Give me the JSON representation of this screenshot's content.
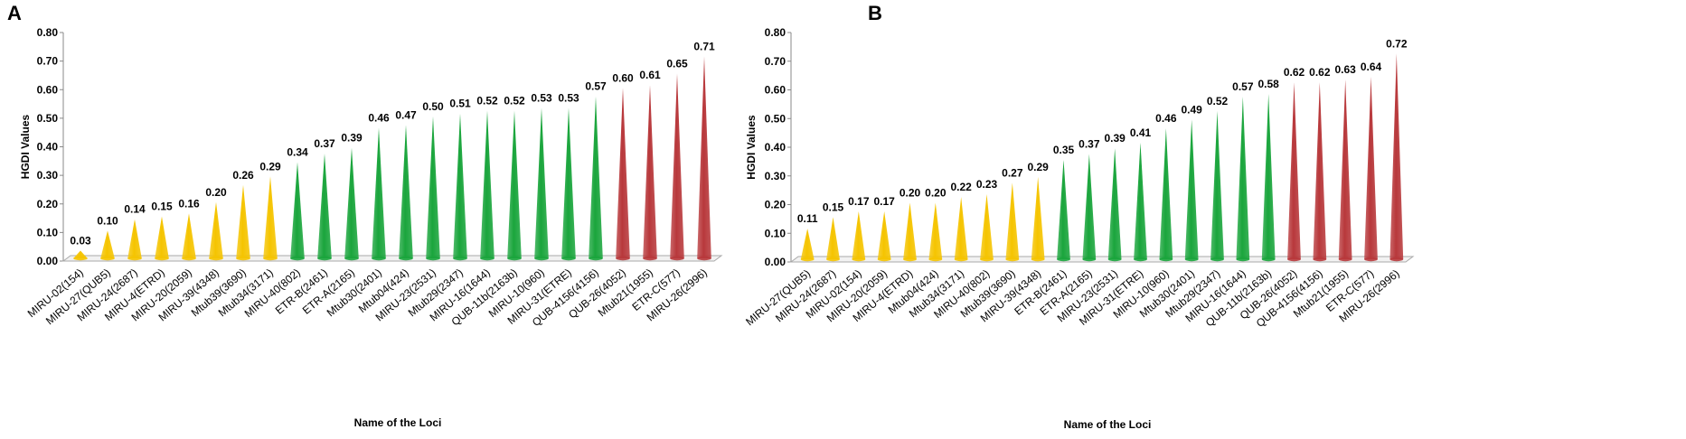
{
  "figure": {
    "panels": [
      "A",
      "B"
    ]
  },
  "colors": {
    "yellow": "#f5c400",
    "green": "#1aa53c",
    "red": "#b8383b"
  },
  "chart_data": [
    {
      "panel": "A",
      "type": "bar",
      "title": "",
      "xlabel": "Name of the Loci",
      "ylabel": "HGDI Values",
      "ylim": [
        0,
        0.8
      ],
      "yticks": [
        "0.00",
        "0.10",
        "0.20",
        "0.30",
        "0.40",
        "0.50",
        "0.60",
        "0.70",
        "0.80"
      ],
      "categories": [
        "MIRU-02(154)",
        "MIRU-27(QUB5)",
        "MIRU-24(2687)",
        "MIRU-4(ETRD)",
        "MIRU-20(2059)",
        "MIRU-39(4348)",
        "Mtub39(3690)",
        "Mtub34(3171)",
        "MIRU-40(802)",
        "ETR-B(2461)",
        "ETR-A(2165)",
        "Mtub30(2401)",
        "Mtub04(424)",
        "MIRU-23(2531)",
        "Mtub29(2347)",
        "MIRU-16(1644)",
        "QUB-11b(2163b)",
        "MIRU-10(960)",
        "MIRU-31(ETRE)",
        "QUB-4156(4156)",
        "QUB-26(4052)",
        "Mtub21(1955)",
        "ETR-C(577)",
        "MIRU-26(2996)"
      ],
      "values": [
        0.03,
        0.1,
        0.14,
        0.15,
        0.16,
        0.2,
        0.26,
        0.29,
        0.34,
        0.37,
        0.39,
        0.46,
        0.47,
        0.5,
        0.51,
        0.52,
        0.52,
        0.53,
        0.53,
        0.57,
        0.6,
        0.61,
        0.65,
        0.71
      ],
      "value_labels": [
        "0.03",
        "0.10",
        "0.14",
        "0.15",
        "0.16",
        "0.20",
        "0.26",
        "0.29",
        "0.34",
        "0.37",
        "0.39",
        "0.46",
        "0.47",
        "0.50",
        "0.51",
        "0.52",
        "0.52",
        "0.53",
        "0.53",
        "0.57",
        "0.60",
        "0.61",
        "0.65",
        "0.71"
      ],
      "color_groups": [
        "yellow",
        "yellow",
        "yellow",
        "yellow",
        "yellow",
        "yellow",
        "yellow",
        "yellow",
        "green",
        "green",
        "green",
        "green",
        "green",
        "green",
        "green",
        "green",
        "green",
        "green",
        "green",
        "green",
        "red",
        "red",
        "red",
        "red"
      ]
    },
    {
      "panel": "B",
      "type": "bar",
      "title": "",
      "xlabel": "Name of the Loci",
      "ylabel": "HGDI Values",
      "ylim": [
        0,
        0.8
      ],
      "yticks": [
        "0.00",
        "0.10",
        "0.20",
        "0.30",
        "0.40",
        "0.50",
        "0.60",
        "0.70",
        "0.80"
      ],
      "categories": [
        "MIRU-27(QUB5)",
        "MIRU-24(2687)",
        "MIRU-02(154)",
        "MIRU-20(2059)",
        "MIRU-4(ETRD)",
        "Mtub04(424)",
        "Mtub34(3171)",
        "MIRU-40(802)",
        "Mtub39(3690)",
        "MIRU-39(4348)",
        "ETR-B(2461)",
        "ETR-A(2165)",
        "MIRU-23(2531)",
        "MIRU-31(ETRE)",
        "MIRU-10(960)",
        "Mtub30(2401)",
        "Mtub29(2347)",
        "MIRU-16(1644)",
        "QUB-11b(2163b)",
        "QUB-26(4052)",
        "QUB-4156(4156)",
        "Mtub21(1955)",
        "ETR-C(577)",
        "MIRU-26(2996)"
      ],
      "values": [
        0.11,
        0.15,
        0.17,
        0.17,
        0.2,
        0.2,
        0.22,
        0.23,
        0.27,
        0.29,
        0.35,
        0.37,
        0.39,
        0.41,
        0.46,
        0.49,
        0.52,
        0.57,
        0.58,
        0.62,
        0.62,
        0.63,
        0.64,
        0.72
      ],
      "value_labels": [
        "0.11",
        "0.15",
        "0.17",
        "0.17",
        "0.20",
        "0.20",
        "0.22",
        "0.23",
        "0.27",
        "0.29",
        "0.35",
        "0.37",
        "0.39",
        "0.41",
        "0.46",
        "0.49",
        "0.52",
        "0.57",
        "0.58",
        "0.62",
        "0.62",
        "0.63",
        "0.64",
        "0.72"
      ],
      "color_groups": [
        "yellow",
        "yellow",
        "yellow",
        "yellow",
        "yellow",
        "yellow",
        "yellow",
        "yellow",
        "yellow",
        "yellow",
        "green",
        "green",
        "green",
        "green",
        "green",
        "green",
        "green",
        "green",
        "green",
        "red",
        "red",
        "red",
        "red",
        "red"
      ]
    }
  ]
}
